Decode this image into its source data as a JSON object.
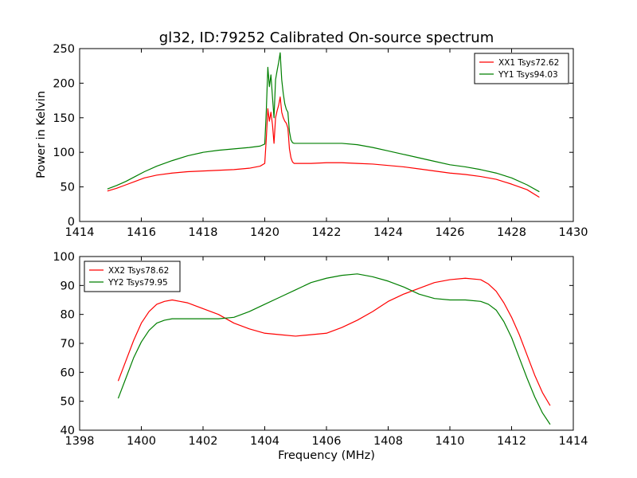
{
  "chart_data": [
    {
      "type": "line",
      "title": "gl32, ID:79252 Calibrated On-source spectrum",
      "xlabel": "",
      "ylabel": "Power in Kelvin",
      "xlim": [
        1414,
        1430
      ],
      "ylim": [
        0,
        250
      ],
      "xticks": [
        "1414",
        "1416",
        "1418",
        "1420",
        "1422",
        "1424",
        "1426",
        "1428",
        "1430"
      ],
      "yticks": [
        "0",
        "50",
        "100",
        "150",
        "200",
        "250"
      ],
      "grid": false,
      "legend_position": "top-right",
      "series": [
        {
          "name": "XX1 Tsys72.62",
          "color": "#ff0000",
          "x": [
            1414.9,
            1415.2,
            1415.5,
            1415.8,
            1416.1,
            1416.5,
            1417.0,
            1417.5,
            1418.0,
            1418.5,
            1419.0,
            1419.5,
            1419.85,
            1420.0,
            1420.05,
            1420.1,
            1420.15,
            1420.2,
            1420.25,
            1420.3,
            1420.35,
            1420.4,
            1420.45,
            1420.5,
            1420.55,
            1420.6,
            1420.65,
            1420.7,
            1420.75,
            1420.8,
            1420.85,
            1420.9,
            1420.95,
            1421.0,
            1421.5,
            1422.0,
            1422.5,
            1423.0,
            1423.5,
            1424.0,
            1424.5,
            1425.0,
            1425.5,
            1426.0,
            1426.5,
            1427.0,
            1427.5,
            1428.0,
            1428.5,
            1428.9
          ],
          "y": [
            44,
            48,
            53,
            58,
            63,
            67,
            70,
            72,
            73,
            74,
            75,
            77,
            80,
            84,
            120,
            163,
            145,
            158,
            140,
            113,
            150,
            160,
            168,
            180,
            158,
            150,
            145,
            142,
            135,
            105,
            92,
            86,
            84,
            84,
            84,
            85,
            85,
            84,
            83,
            81,
            79,
            76,
            73,
            70,
            68,
            65,
            61,
            54,
            46,
            35
          ]
        },
        {
          "name": "YY1 Tsys94.03",
          "color": "#007f00",
          "x": [
            1414.9,
            1415.2,
            1415.5,
            1415.8,
            1416.1,
            1416.5,
            1417.0,
            1417.5,
            1418.0,
            1418.5,
            1419.0,
            1419.5,
            1419.85,
            1420.0,
            1420.05,
            1420.1,
            1420.15,
            1420.2,
            1420.25,
            1420.3,
            1420.35,
            1420.4,
            1420.45,
            1420.5,
            1420.55,
            1420.6,
            1420.65,
            1420.7,
            1420.75,
            1420.8,
            1420.85,
            1420.9,
            1420.95,
            1421.0,
            1421.5,
            1422.0,
            1422.5,
            1423.0,
            1423.5,
            1424.0,
            1424.5,
            1425.0,
            1425.5,
            1426.0,
            1426.5,
            1427.0,
            1427.5,
            1428.0,
            1428.5,
            1428.9
          ],
          "y": [
            47,
            52,
            58,
            65,
            72,
            80,
            88,
            95,
            100,
            103,
            105,
            107,
            109,
            112,
            160,
            223,
            195,
            212,
            180,
            150,
            205,
            218,
            230,
            244,
            205,
            185,
            170,
            162,
            158,
            130,
            118,
            114,
            113,
            113,
            113,
            113,
            113,
            111,
            107,
            102,
            97,
            92,
            87,
            82,
            79,
            75,
            70,
            63,
            53,
            43
          ]
        }
      ]
    },
    {
      "type": "line",
      "title": "",
      "xlabel": "Frequency (MHz)",
      "ylabel": "",
      "xlim": [
        1398,
        1414
      ],
      "ylim": [
        40,
        100
      ],
      "xticks": [
        "1398",
        "1400",
        "1402",
        "1404",
        "1406",
        "1408",
        "1410",
        "1412",
        "1414"
      ],
      "yticks": [
        "40",
        "50",
        "60",
        "70",
        "80",
        "90",
        "100"
      ],
      "grid": false,
      "legend_position": "top-left",
      "series": [
        {
          "name": "XX2 Tsys78.62",
          "color": "#ff0000",
          "x": [
            1399.25,
            1399.5,
            1399.75,
            1400.0,
            1400.25,
            1400.5,
            1400.75,
            1401.0,
            1401.25,
            1401.5,
            1401.75,
            1402.0,
            1402.5,
            1403.0,
            1403.5,
            1404.0,
            1404.5,
            1405.0,
            1405.5,
            1406.0,
            1406.5,
            1407.0,
            1407.5,
            1408.0,
            1408.5,
            1409.0,
            1409.5,
            1410.0,
            1410.5,
            1411.0,
            1411.25,
            1411.5,
            1411.75,
            1412.0,
            1412.25,
            1412.5,
            1412.75,
            1413.0,
            1413.25
          ],
          "y": [
            57,
            64,
            71,
            77,
            81,
            83.5,
            84.5,
            85,
            84.5,
            84,
            83,
            82,
            80,
            77,
            75,
            73.5,
            73,
            72.5,
            73,
            73.5,
            75.5,
            78,
            81,
            84.5,
            87,
            89,
            91,
            92,
            92.5,
            92,
            90.5,
            88,
            84,
            79,
            73,
            66,
            59,
            53,
            48.5
          ]
        },
        {
          "name": "YY2 Tsys79.95",
          "color": "#007f00",
          "x": [
            1399.25,
            1399.5,
            1399.75,
            1400.0,
            1400.25,
            1400.5,
            1400.75,
            1401.0,
            1401.25,
            1401.5,
            1401.75,
            1402.0,
            1402.5,
            1403.0,
            1403.5,
            1404.0,
            1404.5,
            1405.0,
            1405.5,
            1406.0,
            1406.5,
            1407.0,
            1407.5,
            1408.0,
            1408.5,
            1409.0,
            1409.5,
            1410.0,
            1410.5,
            1411.0,
            1411.25,
            1411.5,
            1411.75,
            1412.0,
            1412.25,
            1412.5,
            1412.75,
            1413.0,
            1413.25
          ],
          "y": [
            51,
            58,
            65,
            70.5,
            74.5,
            77,
            78,
            78.5,
            78.5,
            78.5,
            78.5,
            78.5,
            78.5,
            79,
            81,
            83.5,
            86,
            88.5,
            91,
            92.5,
            93.5,
            94,
            93,
            91.5,
            89.5,
            87,
            85.5,
            85,
            85,
            84.5,
            83.5,
            81.5,
            77.5,
            72,
            65,
            58,
            51.5,
            46,
            42
          ]
        }
      ]
    }
  ]
}
